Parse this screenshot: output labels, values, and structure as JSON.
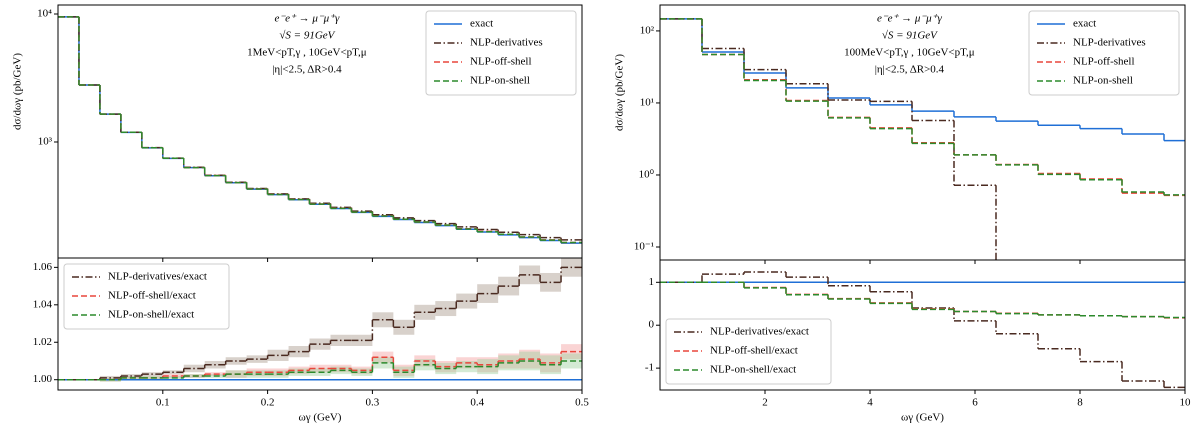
{
  "chart_data": [
    {
      "type": "histogram",
      "log_y": true,
      "ylabel": "dσ/dωγ (pb/GeV)",
      "annotations": [
        "e⁻e⁺ → μ⁻μ⁺γ",
        "√S = 91GeV",
        "1MeV<pT,γ ,   10GeV<pT,μ",
        "|η|<2.5,   ΔR>0.4"
      ],
      "legend": "upper right",
      "bins": [
        0,
        0.02,
        0.04,
        0.06,
        0.08,
        0.1,
        0.12,
        0.14,
        0.16,
        0.18,
        0.2,
        0.22,
        0.24,
        0.26,
        0.28,
        0.3,
        0.32,
        0.34,
        0.36,
        0.38,
        0.4,
        0.42,
        0.44,
        0.46,
        0.48,
        0.5
      ],
      "xlim": [
        0,
        0.5
      ],
      "ylim": [
        124,
        11760
      ],
      "yticks": [
        {
          "value": 1000,
          "label": "10³"
        },
        {
          "value": 10000,
          "label": "10⁴"
        }
      ],
      "series": [
        {
          "name": "exact",
          "color": "#1f6fd6",
          "dash": "solid",
          "values": [
            9500,
            2790,
            1650,
            1190,
            900,
            745,
            630,
            545,
            480,
            428,
            388,
            354,
            326,
            302,
            282,
            262,
            248,
            235,
            222,
            208,
            198,
            188,
            179,
            170,
            162
          ]
        },
        {
          "name": "NLP-derivatives",
          "color": "#4a2a20",
          "dash": "dashdot",
          "values": [
            9500,
            2790,
            1652,
            1192,
            903,
            748,
            634,
            549,
            485,
            433,
            393,
            359,
            332,
            308,
            288,
            270,
            255,
            243,
            230,
            217,
            207,
            197,
            189,
            179,
            172
          ]
        },
        {
          "name": "NLP-off-shell",
          "color": "#e8473c",
          "dash": "dashed",
          "values": [
            9500,
            2790,
            1650,
            1191,
            901,
            746,
            631,
            547,
            481,
            430,
            390,
            356,
            328,
            304,
            283,
            265,
            249,
            237,
            224,
            210,
            200,
            190,
            181,
            172,
            164
          ]
        },
        {
          "name": "NLP-on-shell",
          "color": "#2c8a2c",
          "dash": "dashed",
          "values": [
            9500,
            2790,
            1650,
            1191,
            901,
            746,
            631,
            546,
            481,
            429,
            389,
            355,
            327,
            303,
            283,
            264,
            249,
            237,
            224,
            209,
            199,
            190,
            181,
            171,
            164
          ]
        }
      ]
    },
    {
      "type": "histogram",
      "xlabel": "ωγ (GeV)",
      "legend": "upper left",
      "hline": 1,
      "hline_color": "#1f6fd6",
      "bins": [
        0,
        0.02,
        0.04,
        0.06,
        0.08,
        0.1,
        0.12,
        0.14,
        0.16,
        0.18,
        0.2,
        0.22,
        0.24,
        0.26,
        0.28,
        0.3,
        0.32,
        0.34,
        0.36,
        0.38,
        0.4,
        0.42,
        0.44,
        0.46,
        0.48,
        0.5
      ],
      "xlim": [
        0,
        0.5
      ],
      "ylim": [
        0.9945,
        1.065
      ],
      "xticks": [
        0.1,
        0.2,
        0.3,
        0.4,
        0.5
      ],
      "yticks": [
        {
          "value": 1,
          "label": "1.00"
        },
        {
          "value": 1.02,
          "label": "1.02"
        },
        {
          "value": 1.04,
          "label": "1.04"
        },
        {
          "value": 1.06,
          "label": "1.06"
        }
      ],
      "series": [
        {
          "name": "NLP-derivatives/exact",
          "color": "#4a2a20",
          "dash": "dashdot",
          "band": "#a89a8c",
          "values": [
            1.0,
            1.0,
            1.001,
            1.002,
            1.003,
            1.004,
            1.006,
            1.008,
            1.01,
            1.011,
            1.013,
            1.015,
            1.019,
            1.021,
            1.021,
            1.032,
            1.028,
            1.036,
            1.038,
            1.042,
            1.046,
            1.05,
            1.056,
            1.052,
            1.06
          ],
          "errors": [
            0,
            0,
            0.001,
            0.001,
            0.001,
            0.001,
            0.002,
            0.002,
            0.002,
            0.002,
            0.003,
            0.003,
            0.003,
            0.003,
            0.003,
            0.004,
            0.004,
            0.004,
            0.004,
            0.004,
            0.005,
            0.005,
            0.005,
            0.005,
            0.005
          ]
        },
        {
          "name": "NLP-off-shell/exact",
          "color": "#e8473c",
          "dash": "dashed",
          "band": "#f4a0a0",
          "values": [
            1.0,
            1.0,
            1.0,
            1.001,
            1.001,
            1.002,
            1.002,
            1.003,
            1.003,
            1.004,
            1.004,
            1.005,
            1.006,
            1.006,
            1.005,
            1.012,
            1.005,
            1.01,
            1.007,
            1.009,
            1.008,
            1.01,
            1.011,
            1.009,
            1.015
          ],
          "errors": [
            0,
            0,
            0.001,
            0.001,
            0.001,
            0.001,
            0.001,
            0.001,
            0.002,
            0.002,
            0.002,
            0.002,
            0.002,
            0.002,
            0.002,
            0.003,
            0.003,
            0.003,
            0.003,
            0.003,
            0.004,
            0.004,
            0.005,
            0.005,
            0.004
          ]
        },
        {
          "name": "NLP-on-shell/exact",
          "color": "#2c8a2c",
          "dash": "dashed",
          "band": "#9fd09f",
          "values": [
            1.0,
            1.0,
            1.0,
            1.001,
            1.001,
            1.001,
            1.002,
            1.002,
            1.003,
            1.003,
            1.003,
            1.004,
            1.004,
            1.005,
            1.004,
            1.009,
            1.004,
            1.008,
            1.006,
            1.007,
            1.007,
            1.009,
            1.01,
            1.008,
            1.01
          ],
          "errors": [
            0,
            0,
            0.001,
            0.001,
            0.001,
            0.001,
            0.001,
            0.001,
            0.002,
            0.002,
            0.002,
            0.002,
            0.002,
            0.002,
            0.002,
            0.003,
            0.003,
            0.003,
            0.003,
            0.003,
            0.004,
            0.004,
            0.005,
            0.005,
            0.004
          ]
        }
      ]
    },
    {
      "type": "histogram",
      "log_y": true,
      "ylabel": "dσ/dωγ (pb/GeV)",
      "annotations": [
        "e⁻e⁺ → μ⁻μ⁺γ",
        "√S = 91GeV",
        "100MeV<pT,γ ,   10GeV<pT,μ",
        "|η|<2.5,   ΔR>0.4"
      ],
      "legend": "upper right",
      "bins": [
        0,
        0.8,
        1.6,
        2.4,
        3.2,
        4.0,
        4.8,
        5.6,
        6.4,
        7.2,
        8.0,
        8.8,
        9.6,
        10.0
      ],
      "xlim": [
        0,
        10
      ],
      "ylim": [
        0.066,
        229
      ],
      "yticks": [
        {
          "value": 0.1,
          "label": "10⁻¹"
        },
        {
          "value": 1,
          "label": "10⁰"
        },
        {
          "value": 10,
          "label": "10¹"
        },
        {
          "value": 100,
          "label": "10²"
        }
      ],
      "series": [
        {
          "name": "exact",
          "color": "#1f6fd6",
          "dash": "solid",
          "values": [
            147,
            51,
            26,
            16.2,
            11.7,
            9.4,
            7.7,
            6.4,
            5.6,
            4.9,
            4.4,
            3.7,
            3.0
          ]
        },
        {
          "name": "NLP-derivatives",
          "color": "#4a2a20",
          "dash": "dashdot",
          "values": [
            147,
            57,
            29,
            18.5,
            11,
            10.5,
            5.7,
            0.72,
            null,
            null,
            null,
            null,
            null
          ]
        },
        {
          "name": "NLP-off-shell",
          "color": "#e8473c",
          "dash": "dashed",
          "values": [
            147,
            47,
            21,
            10.8,
            6.3,
            4.5,
            2.8,
            1.9,
            1.4,
            1.05,
            0.88,
            0.56,
            0.52
          ]
        },
        {
          "name": "NLP-on-shell",
          "color": "#2c8a2c",
          "dash": "dashed",
          "values": [
            147,
            47,
            20.5,
            10.6,
            6.2,
            4.4,
            2.75,
            1.9,
            1.38,
            1.02,
            0.86,
            0.58,
            0.53
          ]
        }
      ]
    },
    {
      "type": "histogram",
      "xlabel": "ωγ (GeV)",
      "legend": "lower left",
      "hline": 1,
      "hline_color": "#1f6fd6",
      "bins": [
        0,
        0.8,
        1.6,
        2.4,
        3.2,
        4.0,
        4.8,
        5.6,
        6.4,
        7.2,
        8.0,
        8.8,
        9.6,
        10.0
      ],
      "xlim": [
        0,
        10
      ],
      "ylim": [
        -1.51,
        1.52
      ],
      "xticks": [
        2,
        4,
        6,
        8,
        10
      ],
      "yticks": [
        -1,
        0,
        1
      ],
      "series": [
        {
          "name": "NLP-derivatives/exact",
          "color": "#4a2a20",
          "dash": "dashdot",
          "values": [
            1.0,
            1.19,
            1.24,
            1.12,
            0.92,
            0.78,
            0.4,
            0.1,
            -0.2,
            -0.55,
            -0.85,
            -1.3,
            -1.45
          ]
        },
        {
          "name": "NLP-off-shell/exact",
          "color": "#e8473c",
          "dash": "dashed",
          "values": [
            1.0,
            1.0,
            0.88,
            0.72,
            0.62,
            0.52,
            0.38,
            0.32,
            0.28,
            0.24,
            0.22,
            0.2,
            0.17
          ]
        },
        {
          "name": "NLP-on-shell/exact",
          "color": "#2c8a2c",
          "dash": "dashed",
          "values": [
            1.0,
            1.0,
            0.87,
            0.71,
            0.61,
            0.51,
            0.37,
            0.32,
            0.27,
            0.24,
            0.22,
            0.2,
            0.18
          ]
        }
      ]
    }
  ]
}
